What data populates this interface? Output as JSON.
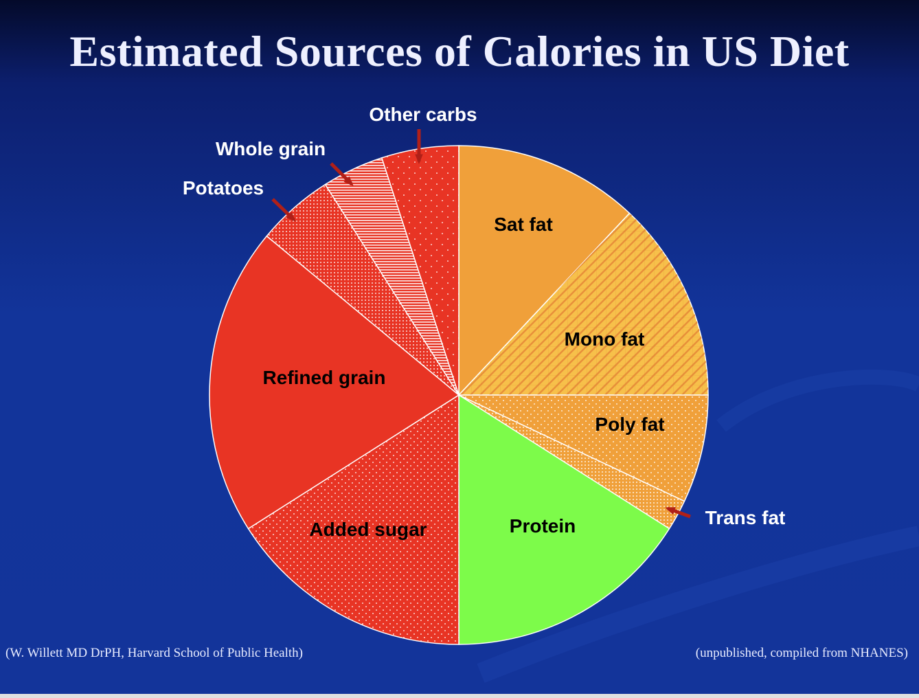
{
  "chart_data": {
    "type": "pie",
    "title": "Estimated Sources of Calories in US Diet",
    "start": "12 o'clock, clockwise",
    "slices": [
      {
        "label": "Sat fat",
        "value": 12,
        "color": "#f0a03a",
        "pattern": "solid"
      },
      {
        "label": "Mono fat",
        "value": 13,
        "color": "#f7c04a",
        "pattern": "diagonal-grid"
      },
      {
        "label": "Poly fat",
        "value": 7,
        "color": "#f0a03a",
        "pattern": "dots"
      },
      {
        "label": "Trans fat",
        "value": 2,
        "color": "#f0a03a",
        "pattern": "dense-dots",
        "arrow": true
      },
      {
        "label": "Protein",
        "value": 16,
        "color": "#7dfb4a",
        "pattern": "solid"
      },
      {
        "label": "Added sugar",
        "value": 16,
        "color": "#e83424",
        "pattern": "dots"
      },
      {
        "label": "Refined grain",
        "value": 20,
        "color": "#e83424",
        "pattern": "solid"
      },
      {
        "label": "Potatoes",
        "value": 5,
        "color": "#e83424",
        "pattern": "dense-dots",
        "arrow": true
      },
      {
        "label": "Whole grain",
        "value": 4,
        "color": "#e83424",
        "pattern": "horizontal-lines",
        "arrow": true
      },
      {
        "label": "Other carbs",
        "value": 5,
        "color": "#e83424",
        "pattern": "sparse-dots",
        "arrow": true
      }
    ]
  },
  "footer": {
    "left": "(W. Willett MD DrPH, Harvard School of Public Health)",
    "right": "(unpublished, compiled from NHANES)"
  }
}
